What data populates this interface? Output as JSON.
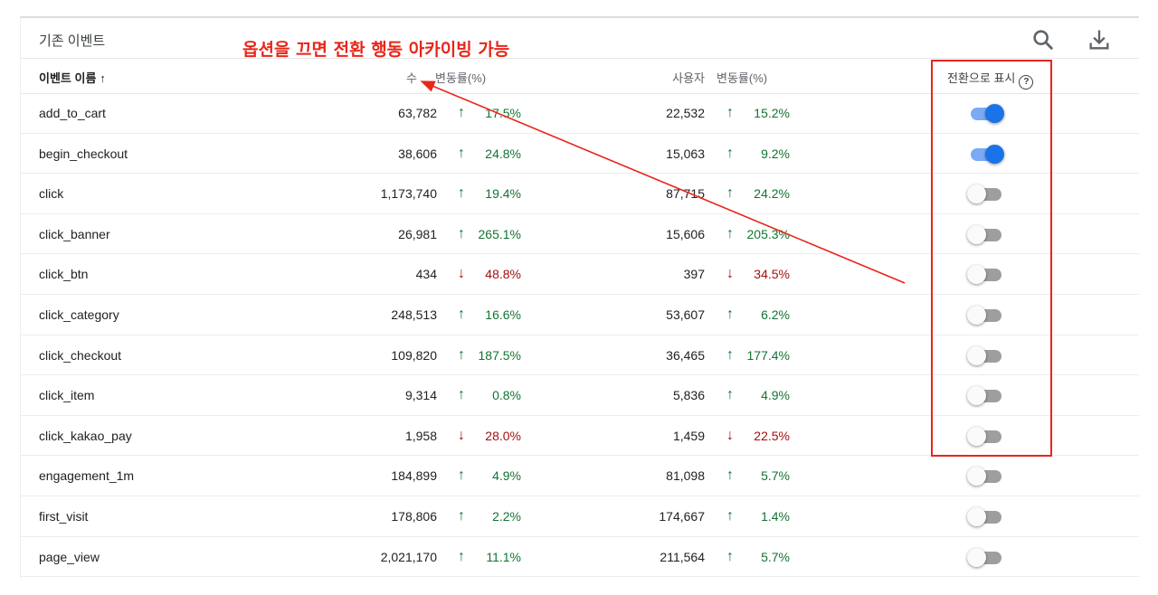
{
  "card": {
    "title": "기존 이벤트",
    "annotation": "옵션을 끄면 전환 행동 아카이빙 가능"
  },
  "icons": {
    "search": "search-icon",
    "download": "download-icon",
    "help": "help-circle-icon"
  },
  "colors": {
    "up": "#137333",
    "down": "#a50e0e",
    "toggle_on": "#1a73e8",
    "annotation": "#e8261a"
  },
  "header": {
    "event_name": "이벤트 이름",
    "sort_arrow": "↑",
    "count": "수",
    "count_change": "변동률(%)",
    "users": "사용자",
    "users_change": "변동률(%)",
    "mark_as_conversion": "전환으로 표시",
    "help": "?"
  },
  "rows": [
    {
      "name": "add_to_cart",
      "count": "63,782",
      "count_dir": "up",
      "count_arrow": "↑",
      "count_pct": "17.5%",
      "users": "22,532",
      "users_dir": "up",
      "users_arrow": "↑",
      "users_pct": "15.2%",
      "conversion": true
    },
    {
      "name": "begin_checkout",
      "count": "38,606",
      "count_dir": "up",
      "count_arrow": "↑",
      "count_pct": "24.8%",
      "users": "15,063",
      "users_dir": "up",
      "users_arrow": "↑",
      "users_pct": "9.2%",
      "conversion": true
    },
    {
      "name": "click",
      "count": "1,173,740",
      "count_dir": "up",
      "count_arrow": "↑",
      "count_pct": "19.4%",
      "users": "87,715",
      "users_dir": "up",
      "users_arrow": "↑",
      "users_pct": "24.2%",
      "conversion": false
    },
    {
      "name": "click_banner",
      "count": "26,981",
      "count_dir": "up",
      "count_arrow": "↑",
      "count_pct": "265.1%",
      "users": "15,606",
      "users_dir": "up",
      "users_arrow": "↑",
      "users_pct": "205.3%",
      "conversion": false
    },
    {
      "name": "click_btn",
      "count": "434",
      "count_dir": "down",
      "count_arrow": "↓",
      "count_pct": "48.8%",
      "users": "397",
      "users_dir": "down",
      "users_arrow": "↓",
      "users_pct": "34.5%",
      "conversion": false
    },
    {
      "name": "click_category",
      "count": "248,513",
      "count_dir": "up",
      "count_arrow": "↑",
      "count_pct": "16.6%",
      "users": "53,607",
      "users_dir": "up",
      "users_arrow": "↑",
      "users_pct": "6.2%",
      "conversion": false
    },
    {
      "name": "click_checkout",
      "count": "109,820",
      "count_dir": "up",
      "count_arrow": "↑",
      "count_pct": "187.5%",
      "users": "36,465",
      "users_dir": "up",
      "users_arrow": "↑",
      "users_pct": "177.4%",
      "conversion": false
    },
    {
      "name": "click_item",
      "count": "9,314",
      "count_dir": "up",
      "count_arrow": "↑",
      "count_pct": "0.8%",
      "users": "5,836",
      "users_dir": "up",
      "users_arrow": "↑",
      "users_pct": "4.9%",
      "conversion": false
    },
    {
      "name": "click_kakao_pay",
      "count": "1,958",
      "count_dir": "down",
      "count_arrow": "↓",
      "count_pct": "28.0%",
      "users": "1,459",
      "users_dir": "down",
      "users_arrow": "↓",
      "users_pct": "22.5%",
      "conversion": false
    },
    {
      "name": "engagement_1m",
      "count": "184,899",
      "count_dir": "up",
      "count_arrow": "↑",
      "count_pct": "4.9%",
      "users": "81,098",
      "users_dir": "up",
      "users_arrow": "↑",
      "users_pct": "5.7%",
      "conversion": false
    },
    {
      "name": "first_visit",
      "count": "178,806",
      "count_dir": "up",
      "count_arrow": "↑",
      "count_pct": "2.2%",
      "users": "174,667",
      "users_dir": "up",
      "users_arrow": "↑",
      "users_pct": "1.4%",
      "conversion": false
    },
    {
      "name": "page_view",
      "count": "2,021,170",
      "count_dir": "up",
      "count_arrow": "↑",
      "count_pct": "11.1%",
      "users": "211,564",
      "users_dir": "up",
      "users_arrow": "↑",
      "users_pct": "5.7%",
      "conversion": false
    }
  ]
}
